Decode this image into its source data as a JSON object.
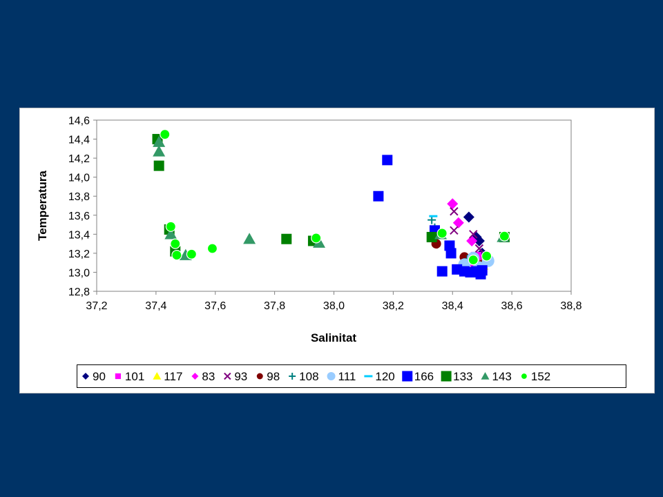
{
  "chart_data": {
    "type": "scatter",
    "title": "",
    "xlabel": "Salinitat",
    "ylabel": "Temperatura",
    "xlim": [
      37.2,
      38.8
    ],
    "ylim": [
      12.8,
      14.6
    ],
    "x_ticks": [
      "37,2",
      "37,4",
      "37,6",
      "37,8",
      "38,0",
      "38,2",
      "38,4",
      "38,6",
      "38,8"
    ],
    "y_ticks": [
      "12,8",
      "13,0",
      "13,2",
      "13,4",
      "13,6",
      "13,8",
      "14,0",
      "14,2",
      "14,4",
      "14,6"
    ],
    "grid": false,
    "legend_position": "bottom",
    "series": [
      {
        "name": "90",
        "marker": "diamond",
        "color": "#000080",
        "points": [
          [
            38.455,
            13.58
          ],
          [
            38.48,
            13.37
          ],
          [
            38.49,
            13.33
          ],
          [
            38.5,
            13.2
          ],
          [
            38.47,
            13.1
          ]
        ]
      },
      {
        "name": "101",
        "marker": "square",
        "color": "#ff00ff",
        "points": [
          [
            38.48,
            13.16
          ],
          [
            38.49,
            13.09
          ],
          [
            38.5,
            13.05
          ],
          [
            38.47,
            13.02
          ]
        ]
      },
      {
        "name": "117",
        "marker": "triangle",
        "color": "#ffff00",
        "points": [
          [
            38.48,
            13.12
          ],
          [
            38.5,
            13.08
          ]
        ]
      },
      {
        "name": "83",
        "marker": "diamond",
        "color": "#ff00ff",
        "points": [
          [
            38.4,
            13.72
          ],
          [
            38.42,
            13.52
          ],
          [
            38.465,
            13.33
          ],
          [
            38.48,
            13.17
          ],
          [
            38.47,
            13.08
          ],
          [
            38.5,
            13.05
          ]
        ]
      },
      {
        "name": "93",
        "marker": "x",
        "color": "#800080",
        "points": [
          [
            38.405,
            13.64
          ],
          [
            38.405,
            13.44
          ],
          [
            38.47,
            13.4
          ],
          [
            38.49,
            13.25
          ],
          [
            38.51,
            13.13
          ],
          [
            38.5,
            13.06
          ]
        ]
      },
      {
        "name": "98",
        "marker": "circle",
        "color": "#800000",
        "points": [
          [
            38.345,
            13.3
          ],
          [
            38.44,
            13.16
          ],
          [
            38.5,
            13.08
          ]
        ]
      },
      {
        "name": "108",
        "marker": "plus",
        "color": "#008080",
        "points": [
          [
            38.33,
            13.55
          ],
          [
            38.34,
            13.47
          ],
          [
            38.45,
            13.14
          ],
          [
            38.5,
            13.06
          ]
        ]
      },
      {
        "name": "111",
        "marker": "circle-large",
        "color": "#99ccff",
        "points": [
          [
            38.44,
            13.08
          ],
          [
            38.47,
            13.15
          ],
          [
            38.49,
            13.05
          ],
          [
            38.52,
            13.12
          ]
        ]
      },
      {
        "name": "120",
        "marker": "dash",
        "color": "#00ccff",
        "points": [
          [
            38.335,
            13.59
          ],
          [
            38.39,
            13.25
          ],
          [
            38.47,
            13.11
          ]
        ]
      },
      {
        "name": "166",
        "marker": "square",
        "color": "#0000ff",
        "points": [
          [
            38.18,
            14.18
          ],
          [
            38.15,
            13.8
          ],
          [
            38.34,
            13.44
          ],
          [
            38.39,
            13.28
          ],
          [
            38.395,
            13.2
          ],
          [
            38.365,
            13.01
          ],
          [
            38.415,
            13.03
          ],
          [
            38.44,
            13.01
          ],
          [
            38.46,
            13.0
          ],
          [
            38.48,
            13.01
          ],
          [
            38.5,
            13.02
          ],
          [
            38.495,
            12.98
          ]
        ]
      },
      {
        "name": "133",
        "marker": "square",
        "color": "#008000",
        "points": [
          [
            37.405,
            14.4
          ],
          [
            37.41,
            14.12
          ],
          [
            37.445,
            13.45
          ],
          [
            37.465,
            13.22
          ],
          [
            37.84,
            13.35
          ],
          [
            37.93,
            13.33
          ],
          [
            38.33,
            13.37
          ],
          [
            38.575,
            13.37
          ]
        ]
      },
      {
        "name": "143",
        "marker": "triangle",
        "color": "#339966",
        "points": [
          [
            37.41,
            14.37
          ],
          [
            37.41,
            14.27
          ],
          [
            37.45,
            13.4
          ],
          [
            37.5,
            13.18
          ],
          [
            37.715,
            13.35
          ],
          [
            37.95,
            13.31
          ],
          [
            38.36,
            13.4
          ],
          [
            38.57,
            13.37
          ]
        ]
      },
      {
        "name": "152",
        "marker": "circle",
        "color": "#00ff00",
        "points": [
          [
            37.43,
            14.45
          ],
          [
            37.45,
            13.48
          ],
          [
            37.465,
            13.3
          ],
          [
            37.47,
            13.18
          ],
          [
            37.52,
            13.19
          ],
          [
            37.59,
            13.25
          ],
          [
            37.94,
            13.36
          ],
          [
            38.365,
            13.41
          ],
          [
            38.47,
            13.13
          ],
          [
            38.515,
            13.17
          ],
          [
            38.575,
            13.38
          ]
        ]
      }
    ]
  }
}
